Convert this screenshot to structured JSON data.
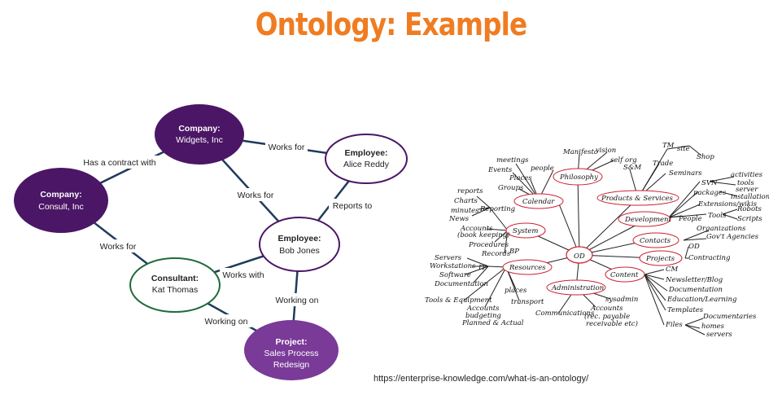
{
  "title": "Ontology: Example",
  "source_url": "https://enterprise-knowledge.com/what-is-an-ontology/",
  "graph": {
    "nodes": {
      "widgets": {
        "type": "Company:",
        "name": "Widgets, Inc"
      },
      "consult": {
        "type": "Company:",
        "name": "Consult, Inc"
      },
      "alice": {
        "type": "Employee:",
        "name": "Alice Reddy"
      },
      "bob": {
        "type": "Employee:",
        "name": "Bob Jones"
      },
      "kat": {
        "type": "Consultant:",
        "name": "Kat Thomas"
      },
      "project": {
        "type": "Project:",
        "name_line1": "Sales Process",
        "name_line2": "Redesign"
      }
    },
    "edges": {
      "has_contract": "Has a contract with",
      "alice_works_for": "Works for",
      "bob_works_for": "Works for",
      "reports_to": "Reports to",
      "kat_works_for": "Works for",
      "works_with": "Works with",
      "bob_working_on": "Working on",
      "kat_working_on": "Working on"
    },
    "colors": {
      "dark_purple": "#4b1666",
      "medium_purple": "#7a3a98",
      "green": "#1f6b3a",
      "edge": "#1f3b5c"
    }
  },
  "mindmap": {
    "center": "OD",
    "branches": {
      "philosophy": "Philosophy",
      "calendar": "Calendar",
      "products": "Products & Services",
      "development": "Development",
      "system": "System",
      "contacts": "Contacts",
      "projects": "Projects",
      "resources": "Resources",
      "content": "Content",
      "administration": "Administration"
    },
    "leaves": {
      "manifesto": "Manifesto",
      "vision": "vision",
      "self_org": "self org",
      "tm": "TM",
      "site": "site",
      "shop": "Shop",
      "trade": "Trade",
      "seminars": "Seminars",
      "sm": "S&M",
      "svn": "SVN",
      "activities": "activities",
      "tools_svn": "tools",
      "packages": "packages",
      "server": "server",
      "installation": "installation",
      "extensions": "Extensions/wikis",
      "people_dev": "People",
      "tools_dev": "Tools",
      "robots": "Robots",
      "scripts": "Scripts",
      "organizations": "Organizations",
      "govt_agencies": "Gov't Agencies",
      "od_proj": "OD",
      "contracting": "Contracting",
      "cm": "CM",
      "newsletter": "Newsletter/Blog",
      "documentation": "Documentation",
      "education": "Education/Learning",
      "templates": "Templates",
      "files": "Files",
      "documentaries": "Documentaries",
      "homes": "homes",
      "servers_files": "servers",
      "meetings": "meetings",
      "events": "Events",
      "people_cal": "people",
      "places_cal": "Places",
      "groups": "Groups",
      "reports": "reports",
      "charts": "Charts",
      "minutes": "minutes",
      "news": "News",
      "reporting": "Reporting",
      "accounts_sys": "Accounts",
      "accounts_sys_note": "(book keeping)",
      "procedures": "Procedures",
      "records": "Records",
      "bp": "BP",
      "servers_res": "Servers",
      "workstations": "Workstations",
      "software": "Software",
      "docs_res": "Documentation",
      "it": "IT",
      "tools_equipment": "Tools & Equipment",
      "accounts_res": "Accounts",
      "budgeting": "budgeting",
      "planned_actual": "Planned & Actual",
      "places_res": "places",
      "transport": "transport",
      "sysadmin": "sysadmin",
      "communications": "Communications",
      "accounts_admin": "Accounts",
      "accounts_admin_note": "(rec. payable",
      "accounts_admin_note2": "receivable etc)"
    }
  }
}
